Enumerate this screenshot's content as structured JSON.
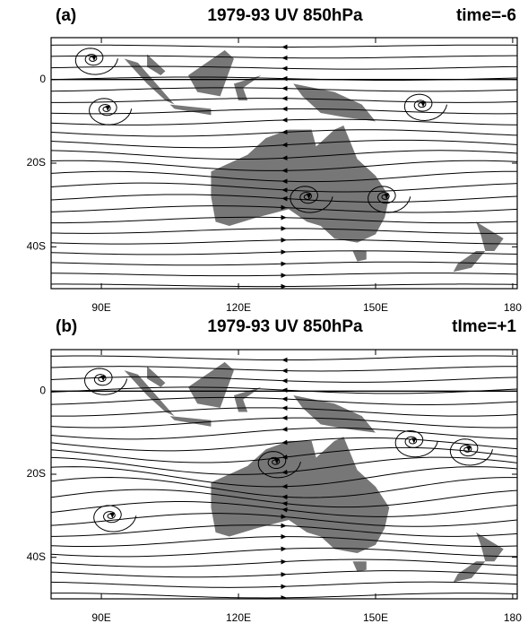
{
  "panels": [
    {
      "label": "(a)",
      "title": "1979-93 UV 850hPa",
      "time": "time=-6",
      "xlim": [
        79,
        181
      ],
      "ylim": [
        -50,
        10
      ],
      "xticks": [
        {
          "value": 90,
          "label": "90E"
        },
        {
          "value": 120,
          "label": "120E"
        },
        {
          "value": 150,
          "label": "150E"
        },
        180
      ],
      "yticks": [
        0,
        {
          "value": -20,
          "label": "20S"
        },
        {
          "value": -40,
          "label": "40S"
        }
      ]
    },
    {
      "label": "(b)",
      "title": "1979-93 UV 850hPa",
      "time": "tIme=+1",
      "xlim": [
        79,
        181
      ],
      "ylim": [
        -50,
        10
      ],
      "xticks": [
        {
          "value": 90,
          "label": "90E"
        },
        {
          "value": 120,
          "label": "120E"
        },
        {
          "value": 150,
          "label": "150E"
        },
        180
      ],
      "yticks": [
        0,
        {
          "value": -20,
          "label": "20S"
        },
        {
          "value": -40,
          "label": "40S"
        }
      ]
    }
  ]
}
